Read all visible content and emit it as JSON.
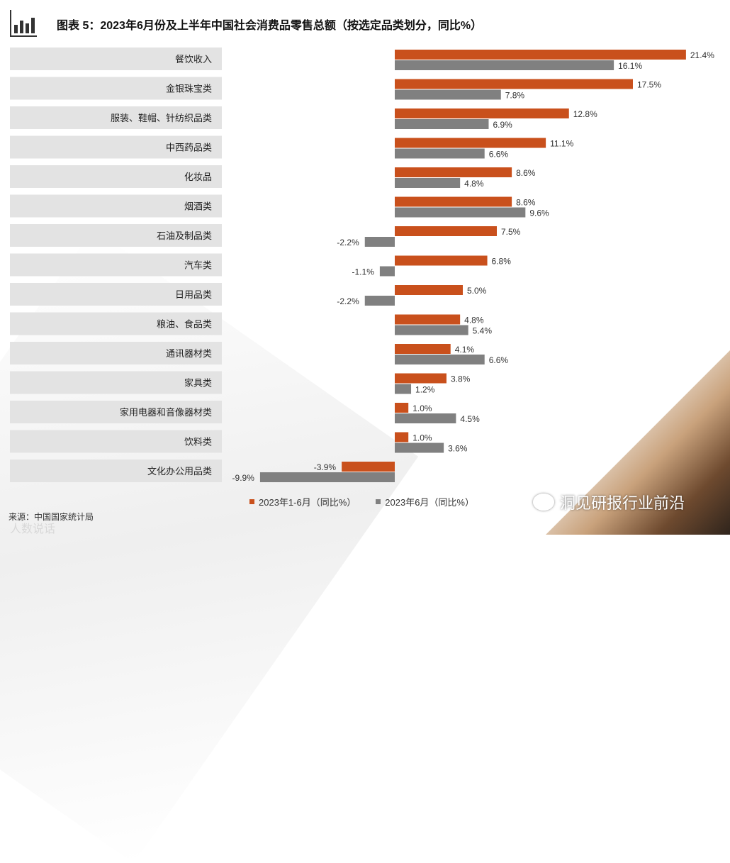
{
  "header": {
    "title": "图表 5：2023年6月份及上半年中国社会消费品零售总额（按选定品类划分，同比%）",
    "icon": "bar-chart-icon"
  },
  "chart_data": {
    "type": "bar",
    "orientation": "horizontal",
    "title": "图表 5：2023年6月份及上半年中国社会消费品零售总额（按选定品类划分，同比%）",
    "categories": [
      "餐饮收入",
      "金银珠宝类",
      "服装、鞋帽、针纺织品类",
      "中西药品类",
      "化妆品",
      "烟酒类",
      "石油及制品类",
      "汽车类",
      "日用品类",
      "粮油、食品类",
      "通讯器材类",
      "家具类",
      "家用电器和音像器材类",
      "饮料类",
      "文化办公用品类"
    ],
    "series": [
      {
        "name": "2023年1-6月（同比%）",
        "color": "#C9501C",
        "values": [
          21.4,
          17.5,
          12.8,
          11.1,
          8.6,
          8.6,
          7.5,
          6.8,
          5.0,
          4.8,
          4.1,
          3.8,
          1.0,
          1.0,
          -3.9
        ]
      },
      {
        "name": "2023年6月（同比%）",
        "color": "#808080",
        "values": [
          16.1,
          7.8,
          6.9,
          6.6,
          4.8,
          9.6,
          -2.2,
          -1.1,
          -2.2,
          5.4,
          6.6,
          1.2,
          4.5,
          3.6,
          -9.9
        ]
      }
    ],
    "value_suffix": "%",
    "legend_position": "bottom",
    "grid": false
  },
  "source": "来源：中国国家统计局",
  "watermarks": {
    "left": "人数说话",
    "right": "洞见研报行业前沿"
  }
}
